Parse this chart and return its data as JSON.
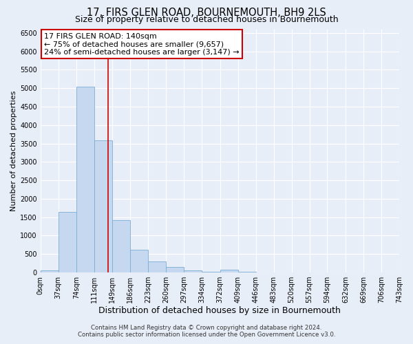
{
  "title": "17, FIRS GLEN ROAD, BOURNEMOUTH, BH9 2LS",
  "subtitle": "Size of property relative to detached houses in Bournemouth",
  "xlabel": "Distribution of detached houses by size in Bournemouth",
  "ylabel": "Number of detached properties",
  "bar_edges": [
    0,
    37,
    74,
    111,
    149,
    186,
    223,
    260,
    297,
    334,
    372,
    409,
    446,
    483,
    520,
    557,
    594,
    632,
    669,
    706,
    743
  ],
  "bar_heights": [
    50,
    1650,
    5050,
    3580,
    1420,
    610,
    300,
    145,
    55,
    10,
    70,
    10,
    0,
    0,
    0,
    0,
    0,
    0,
    0,
    0
  ],
  "bar_color": "#c5d8f0",
  "bar_edge_color": "#7aadd4",
  "vline_x": 140,
  "vline_color": "#cc0000",
  "ylim": [
    0,
    6600
  ],
  "yticks": [
    0,
    500,
    1000,
    1500,
    2000,
    2500,
    3000,
    3500,
    4000,
    4500,
    5000,
    5500,
    6000,
    6500
  ],
  "xlim": [
    0,
    743
  ],
  "annotation_title": "17 FIRS GLEN ROAD: 140sqm",
  "annotation_line1": "← 75% of detached houses are smaller (9,657)",
  "annotation_line2": "24% of semi-detached houses are larger (3,147) →",
  "annotation_box_facecolor": "#ffffff",
  "annotation_box_edgecolor": "#cc0000",
  "footer_line1": "Contains HM Land Registry data © Crown copyright and database right 2024.",
  "footer_line2": "Contains public sector information licensed under the Open Government Licence v3.0.",
  "fig_facecolor": "#e8eef8",
  "axes_facecolor": "#e8eef8",
  "grid_color": "#ffffff",
  "title_fontsize": 10.5,
  "subtitle_fontsize": 9,
  "xlabel_fontsize": 9,
  "ylabel_fontsize": 8,
  "tick_fontsize": 7,
  "annotation_fontsize": 8,
  "footer_fontsize": 6.2
}
